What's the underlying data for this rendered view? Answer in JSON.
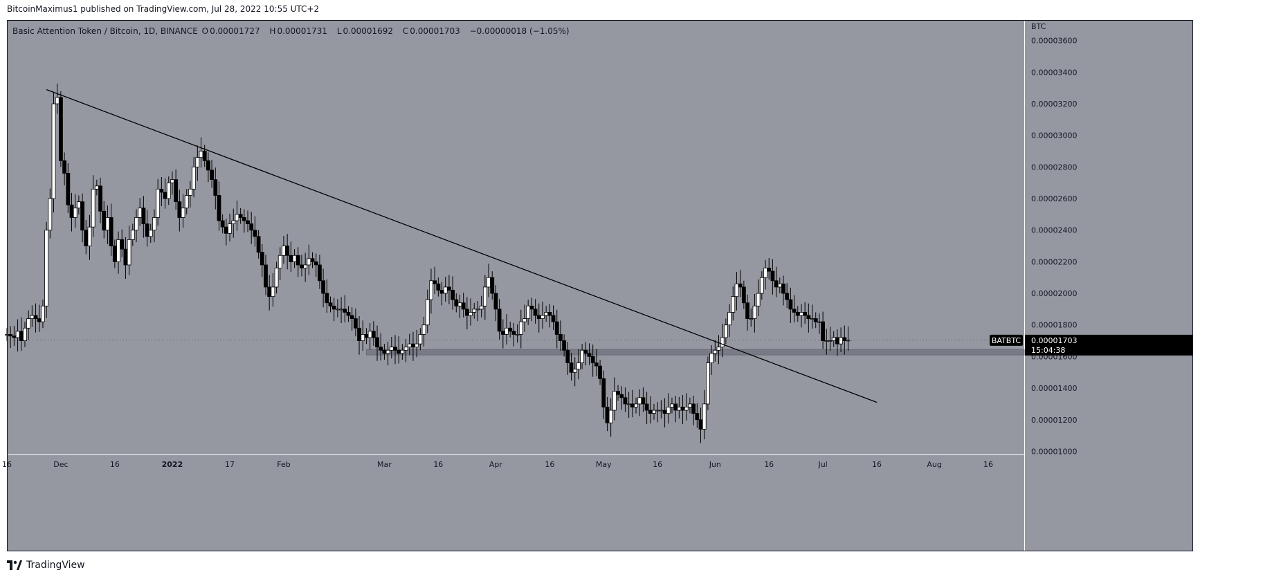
{
  "header": {
    "published_text": "BitcoinMaximus1 published on TradingView.com, Jul 28, 2022 10:55 UTC+2"
  },
  "symbol": {
    "title": "Basic Attention Token / Bitcoin, 1D, BINANCE",
    "ohlc": [
      {
        "key": "O",
        "value": "0.00001727"
      },
      {
        "key": "H",
        "value": "0.00001731"
      },
      {
        "key": "L",
        "value": "0.00001692"
      },
      {
        "key": "C",
        "value": "0.00001703"
      }
    ],
    "change": "−0.00000018 (−1.05%)"
  },
  "price_scale": {
    "currency": "BTC",
    "labels": [
      "0.00003600",
      "0.00003400",
      "0.00003200",
      "0.00003000",
      "0.00002800",
      "0.00002600",
      "0.00002400",
      "0.00002200",
      "0.00002000",
      "0.00001800",
      "0.00001600",
      "0.00001400",
      "0.00001200",
      "0.00001000"
    ]
  },
  "last_price": {
    "ticker": "BATBTC",
    "price": "0.00001703",
    "countdown": "15:04:38"
  },
  "footer": {
    "brand": "TradingView"
  },
  "colors": {
    "plot_background": "#9598a1",
    "candle_up": "#ffffff",
    "candle_down": "#000000",
    "trendline": "#000000",
    "support_zone": "#787b86",
    "tag_background": "#000000"
  },
  "chart_data": {
    "type": "candlestick",
    "title": "Basic Attention Token / Bitcoin, 1D, BINANCE",
    "ylabel": "BTC",
    "ylim": [
      9.8e-06,
      3.73e-05
    ],
    "x_tick_labels": [
      "16",
      "Dec",
      "16",
      "2022",
      "17",
      "Feb",
      "Mar",
      "16",
      "Apr",
      "16",
      "May",
      "16",
      "Jun",
      "16",
      "Jul",
      "16",
      "Aug",
      "16"
    ],
    "x_tick_dates": [
      "2021-11-16",
      "2021-12-01",
      "2021-12-16",
      "2022-01-01",
      "2022-01-17",
      "2022-02-01",
      "2022-03-01",
      "2022-03-16",
      "2022-04-01",
      "2022-04-16",
      "2022-05-01",
      "2022-05-16",
      "2022-06-01",
      "2022-06-16",
      "2022-07-01",
      "2022-07-16",
      "2022-08-01",
      "2022-08-16"
    ],
    "x_range": [
      "2021-11-16",
      "2022-08-26"
    ],
    "close_series": {
      "start": "2021-11-16",
      "values": [
        1.74,
        1.73,
        1.72,
        1.76,
        1.7,
        1.78,
        1.84,
        1.86,
        1.84,
        1.82,
        1.92,
        2.4,
        2.6,
        3.2,
        3.24,
        2.84,
        2.76,
        2.56,
        2.48,
        2.54,
        2.58,
        2.4,
        2.3,
        2.42,
        2.66,
        2.68,
        2.52,
        2.4,
        2.48,
        2.3,
        2.2,
        2.34,
        2.28,
        2.18,
        2.34,
        2.4,
        2.48,
        2.54,
        2.44,
        2.36,
        2.4,
        2.48,
        2.66,
        2.64,
        2.6,
        2.7,
        2.72,
        2.58,
        2.48,
        2.54,
        2.62,
        2.66,
        2.8,
        2.86,
        2.9,
        2.84,
        2.78,
        2.72,
        2.62,
        2.46,
        2.42,
        2.38,
        2.44,
        2.46,
        2.5,
        2.48,
        2.46,
        2.44,
        2.4,
        2.36,
        2.26,
        2.18,
        2.04,
        1.98,
        2.04,
        2.16,
        2.24,
        2.3,
        2.24,
        2.2,
        2.24,
        2.18,
        2.16,
        2.18,
        2.22,
        2.2,
        2.18,
        2.08,
        2.0,
        1.94,
        1.92,
        1.9,
        1.9,
        1.9,
        1.88,
        1.86,
        1.84,
        1.78,
        1.7,
        1.74,
        1.72,
        1.76,
        1.72,
        1.66,
        1.64,
        1.62,
        1.64,
        1.66,
        1.64,
        1.62,
        1.64,
        1.66,
        1.68,
        1.66,
        1.68,
        1.74,
        1.8,
        1.96,
        2.08,
        2.06,
        2.02,
        2.0,
        2.04,
        2.02,
        1.96,
        1.92,
        1.94,
        1.9,
        1.86,
        1.88,
        1.9,
        1.9,
        1.92,
        2.04,
        2.1,
        2.0,
        1.9,
        1.76,
        1.74,
        1.78,
        1.76,
        1.74,
        1.74,
        1.82,
        1.84,
        1.92,
        1.9,
        1.86,
        1.84,
        1.86,
        1.88,
        1.86,
        1.82,
        1.74,
        1.7,
        1.64,
        1.56,
        1.5,
        1.52,
        1.56,
        1.64,
        1.62,
        1.6,
        1.56,
        1.54,
        1.46,
        1.28,
        1.18,
        1.26,
        1.38,
        1.36,
        1.34,
        1.3,
        1.3,
        1.28,
        1.3,
        1.34,
        1.3,
        1.26,
        1.24,
        1.26,
        1.26,
        1.26,
        1.24,
        1.28,
        1.3,
        1.26,
        1.28,
        1.26,
        1.28,
        1.3,
        1.24,
        1.2,
        1.14,
        1.3,
        1.56,
        1.62,
        1.64,
        1.66,
        1.72,
        1.8,
        1.88,
        1.98,
        2.06,
        2.04,
        1.94,
        1.84,
        1.84,
        1.92,
        2.0,
        2.1,
        2.16,
        2.14,
        2.08,
        2.04,
        2.06,
        2.0,
        1.96,
        1.9,
        1.88,
        1.86,
        1.88,
        1.86,
        1.84,
        1.84,
        1.82,
        1.82,
        1.7,
        1.7,
        1.7,
        1.72,
        1.68,
        1.72,
        1.7,
        1.703
      ],
      "scale": 1e-05
    },
    "annotations": [
      {
        "type": "trendline",
        "from": {
          "date": "2021-11-27",
          "price": 3.29e-05
        },
        "to": {
          "date": "2022-07-16",
          "price": 1.31e-05
        }
      },
      {
        "type": "support_zone",
        "from_date": "2022-02-24",
        "to_date": "2022-08-26",
        "price_low": 1.61e-05,
        "price_high": 1.645e-05
      }
    ]
  }
}
